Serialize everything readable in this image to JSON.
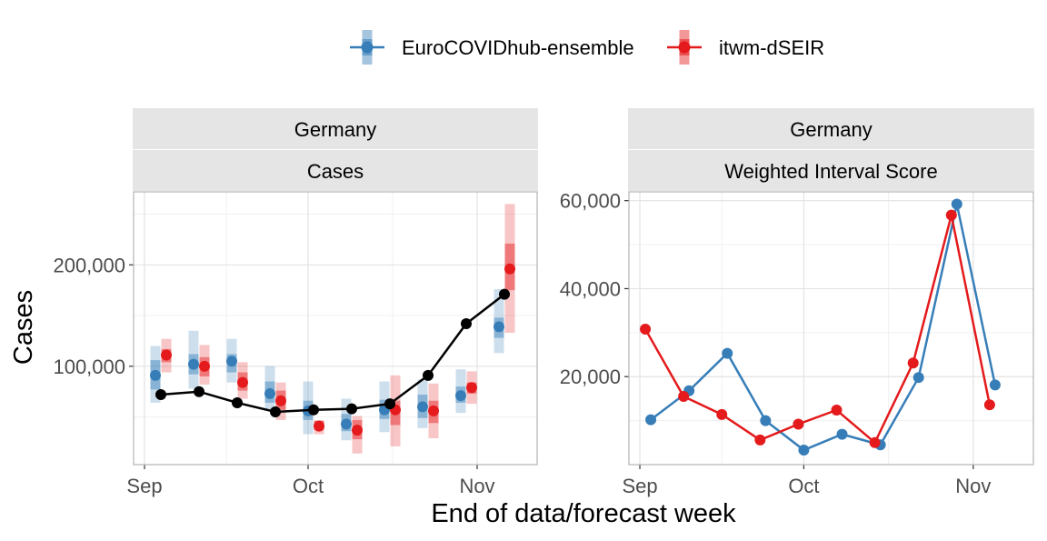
{
  "legend": {
    "items": [
      {
        "label": "EuroCOVIDhub-ensemble",
        "color": "#377EB8"
      },
      {
        "label": "itwm-dSEIR",
        "color": "#E41A1C"
      }
    ],
    "placement": "top"
  },
  "xlabel": "End of data/forecast week",
  "chart_data": [
    {
      "type": "line",
      "strip": [
        "Germany",
        "Cases"
      ],
      "ylabel": "Cases",
      "x_ticks": [
        "Sep",
        "Oct",
        "Nov"
      ],
      "x_tick_dates": [
        "2021-09-01",
        "2021-10-01",
        "2021-11-01"
      ],
      "xlim": [
        "2021-08-30",
        "2021-11-12"
      ],
      "ylim": [
        3000,
        272000
      ],
      "y_ticks": [
        100000,
        200000
      ],
      "y_tick_labels": [
        "100,000",
        "200,000"
      ],
      "grid": true,
      "observed": {
        "color": "#000000",
        "dates": [
          "2021-09-04",
          "2021-09-11",
          "2021-09-18",
          "2021-09-25",
          "2021-10-02",
          "2021-10-09",
          "2021-10-16",
          "2021-10-23",
          "2021-10-30",
          "2021-11-06"
        ],
        "values": [
          72000,
          75000,
          64000,
          55000,
          57000,
          58000,
          63000,
          91000,
          142000,
          171000
        ]
      },
      "series": [
        {
          "name": "EuroCOVIDhub-ensemble",
          "color": "#377EB8",
          "dates": [
            "2021-09-03",
            "2021-09-10",
            "2021-09-17",
            "2021-09-24",
            "2021-10-01",
            "2021-10-08",
            "2021-10-15",
            "2021-10-22",
            "2021-10-29",
            "2021-11-05"
          ],
          "median": [
            91000,
            102000,
            105000,
            73000,
            56000,
            43000,
            57000,
            60000,
            71000,
            139000
          ],
          "inner": [
            [
              77000,
              106000
            ],
            [
              92000,
              112000
            ],
            [
              94000,
              112000
            ],
            [
              64000,
              85000
            ],
            [
              47000,
              66000
            ],
            [
              36000,
              53000
            ],
            [
              48000,
              67000
            ],
            [
              49000,
              72000
            ],
            [
              64000,
              80000
            ],
            [
              128000,
              148000
            ]
          ],
          "outer": [
            [
              64000,
              120000
            ],
            [
              78000,
              135000
            ],
            [
              84000,
              127000
            ],
            [
              57000,
              100000
            ],
            [
              33000,
              85000
            ],
            [
              27000,
              68000
            ],
            [
              35000,
              85000
            ],
            [
              39000,
              87000
            ],
            [
              54000,
              97000
            ],
            [
              113000,
              176000
            ]
          ]
        },
        {
          "name": "itwm-dSEIR",
          "color": "#E41A1C",
          "dates": [
            "2021-09-05",
            "2021-09-12",
            "2021-09-19",
            "2021-09-26",
            "2021-10-03",
            "2021-10-10",
            "2021-10-17",
            "2021-10-24",
            "2021-10-31",
            "2021-11-07"
          ],
          "median": [
            111000,
            100000,
            84000,
            66000,
            41000,
            37000,
            57000,
            56000,
            79000,
            196000
          ],
          "inner": [
            [
              104000,
              117000
            ],
            [
              90000,
              109000
            ],
            [
              76000,
              94000
            ],
            [
              57000,
              76000
            ],
            [
              37000,
              46000
            ],
            [
              28000,
              47000
            ],
            [
              42000,
              66000
            ],
            [
              44000,
              66000
            ],
            [
              73000,
              84000
            ],
            [
              175000,
              221000
            ]
          ],
          "outer": [
            [
              94000,
              127000
            ],
            [
              82000,
              121000
            ],
            [
              68000,
              104000
            ],
            [
              47000,
              84000
            ],
            [
              33000,
              47000
            ],
            [
              14000,
              51000
            ],
            [
              21000,
              91000
            ],
            [
              29000,
              83000
            ],
            [
              63000,
              95000
            ],
            [
              133000,
              260000
            ]
          ]
        }
      ]
    },
    {
      "type": "line",
      "strip": [
        "Germany",
        "Weighted Interval Score"
      ],
      "x_ticks": [
        "Sep",
        "Oct",
        "Nov"
      ],
      "x_tick_dates": [
        "2021-09-01",
        "2021-10-01",
        "2021-11-01"
      ],
      "xlim": [
        "2021-08-30",
        "2021-11-12"
      ],
      "ylim": [
        0,
        62000
      ],
      "y_ticks": [
        20000,
        40000,
        60000
      ],
      "y_tick_labels": [
        "20,000",
        "40,000",
        "60,000"
      ],
      "grid": true,
      "series": [
        {
          "name": "EuroCOVIDhub-ensemble",
          "color": "#377EB8",
          "dates": [
            "2021-09-03",
            "2021-09-10",
            "2021-09-17",
            "2021-09-24",
            "2021-10-01",
            "2021-10-08",
            "2021-10-15",
            "2021-10-22",
            "2021-10-29",
            "2021-11-05"
          ],
          "values": [
            10200,
            16800,
            25300,
            10000,
            3300,
            6900,
            4500,
            19800,
            59200,
            18100
          ]
        },
        {
          "name": "itwm-dSEIR",
          "color": "#E41A1C",
          "dates": [
            "2021-09-02",
            "2021-09-09",
            "2021-09-16",
            "2021-09-23",
            "2021-09-30",
            "2021-10-07",
            "2021-10-14",
            "2021-10-21",
            "2021-10-28",
            "2021-11-04"
          ],
          "values": [
            30800,
            15500,
            11400,
            5600,
            9200,
            12400,
            5000,
            23100,
            56700,
            13600
          ]
        }
      ]
    }
  ]
}
